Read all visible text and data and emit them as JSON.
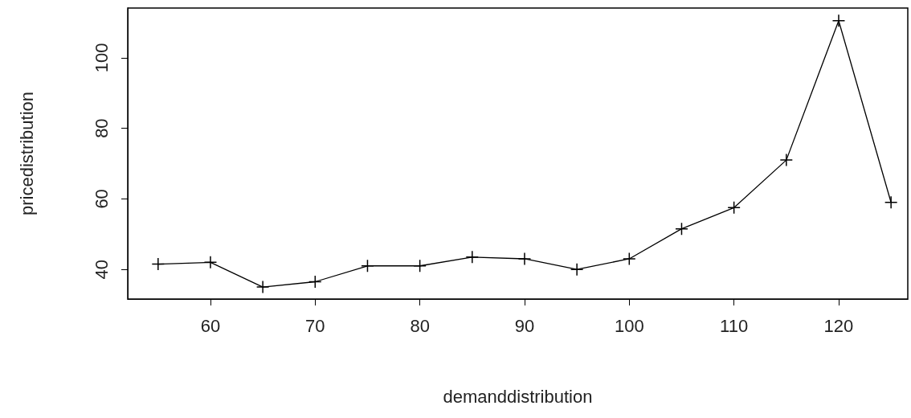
{
  "chart_data": {
    "type": "line",
    "xlabel": "demanddistribution",
    "ylabel": "pricedistribution",
    "x": [
      55,
      60,
      65,
      70,
      75,
      80,
      85,
      90,
      95,
      100,
      105,
      110,
      115,
      120,
      125
    ],
    "series": [
      {
        "color": "#000000",
        "values": [
          41.5,
          42,
          35,
          36.5,
          41,
          41,
          43.5,
          43,
          40,
          43,
          51.5,
          57.5,
          71,
          110.5,
          59
        ]
      }
    ],
    "xlim": [
      52.1,
      126.6
    ],
    "xticks": [
      60,
      70,
      80,
      90,
      100,
      110,
      120
    ],
    "ylim": [
      31.6,
      114.1
    ],
    "yticks": [
      40,
      60,
      80,
      100
    ],
    "marker": "cross",
    "line_style": "solid",
    "grid": false
  }
}
